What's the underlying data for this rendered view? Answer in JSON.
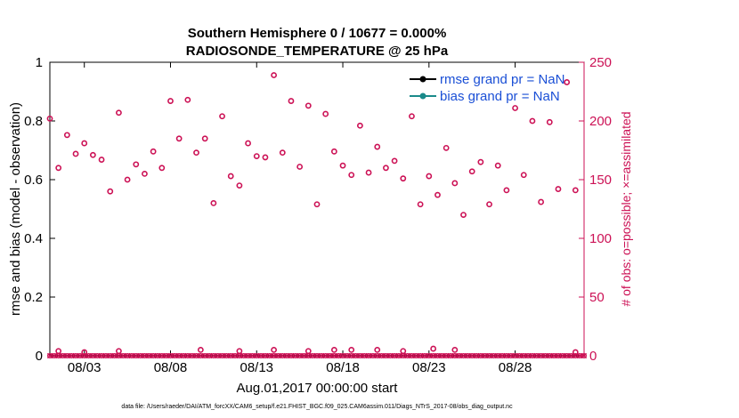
{
  "chart_data": {
    "type": "scatter",
    "title": [
      "Southern Hemisphere 0 / 10677 = 0.000%",
      "RADIOSONDE_TEMPERATURE @ 25 hPa"
    ],
    "xlabel": "Aug.01,2017 00:00:00 start",
    "ylabel_left": "rmse and bias (model - observation)",
    "ylabel_right": "# of obs: o=possible; ×=assimilated",
    "xlim": [
      1.0,
      32.0
    ],
    "ylim_left": [
      0,
      1
    ],
    "ylim_right": [
      0,
      250
    ],
    "x_ticks": [
      {
        "value": 3,
        "label": "08/03"
      },
      {
        "value": 8,
        "label": "08/08"
      },
      {
        "value": 13,
        "label": "08/13"
      },
      {
        "value": 18,
        "label": "08/18"
      },
      {
        "value": 23,
        "label": "08/23"
      },
      {
        "value": 28,
        "label": "08/28"
      }
    ],
    "y_ticks_left": [
      "0",
      "0.2",
      "0.4",
      "0.6",
      "0.8",
      "1"
    ],
    "y_ticks_right": [
      "0",
      "50",
      "100",
      "150",
      "200",
      "250"
    ],
    "legend": [
      {
        "label": "rmse grand pr = NaN",
        "color": "#000000"
      },
      {
        "label": "bias grand pr = NaN",
        "color": "#1a8a8a"
      }
    ],
    "series": [
      {
        "name": "possible observations (high counts)",
        "marker": "circle",
        "color": "#cc1155",
        "x": [
          1.0,
          1.5,
          2.0,
          2.5,
          3.0,
          3.5,
          4.0,
          4.5,
          5.0,
          5.5,
          6.0,
          6.5,
          7.0,
          7.5,
          8.0,
          8.5,
          9.0,
          9.5,
          10.0,
          10.5,
          11.0,
          11.5,
          12.0,
          12.5,
          13.0,
          13.5,
          14.0,
          14.5,
          15.0,
          15.5,
          16.0,
          16.5,
          17.0,
          17.5,
          18.0,
          18.5,
          19.0,
          19.5,
          20.0,
          20.5,
          21.0,
          21.5,
          22.0,
          22.5,
          23.0,
          23.5,
          24.0,
          24.5,
          25.0,
          25.5,
          26.0,
          26.5,
          27.0,
          27.5,
          28.0,
          28.5,
          29.0,
          29.5,
          30.0,
          30.5,
          31.0,
          31.5
        ],
        "y": [
          202,
          160,
          188,
          172,
          181,
          171,
          167,
          140,
          207,
          150,
          163,
          155,
          174,
          160,
          217,
          185,
          218,
          173,
          185,
          130,
          204,
          153,
          145,
          181,
          170,
          169,
          239,
          173,
          217,
          161,
          213,
          129,
          206,
          174,
          162,
          154,
          196,
          156,
          178,
          160,
          166,
          151,
          204,
          129,
          153,
          137,
          177,
          147,
          120,
          157,
          165,
          129,
          162,
          141,
          211,
          154,
          200,
          131,
          199,
          142,
          233,
          141
        ]
      },
      {
        "name": "possible observations (low counts)",
        "marker": "circle",
        "color": "#cc1155",
        "x": [
          1.5,
          3.0,
          5.0,
          9.75,
          12.0,
          14.0,
          16.0,
          17.5,
          18.5,
          20.0,
          21.5,
          23.25,
          24.5,
          31.5
        ],
        "y": [
          4,
          3,
          4,
          5,
          4,
          5,
          4,
          5,
          5,
          5,
          4,
          6,
          5,
          3
        ]
      },
      {
        "name": "assimilated observations",
        "marker": "x",
        "color": "#cc1155",
        "y_value": 0,
        "x_start": 1.0,
        "x_end": 32.0,
        "x_step": 0.25
      }
    ]
  },
  "footer": "data file: /Users/raeder/DAI/ATM_forcXX/CAM6_setup/f.e21.FHIST_BGC.f09_025.CAM6assim.011/Diags_NTrS_2017-08/obs_diag_output.nc"
}
